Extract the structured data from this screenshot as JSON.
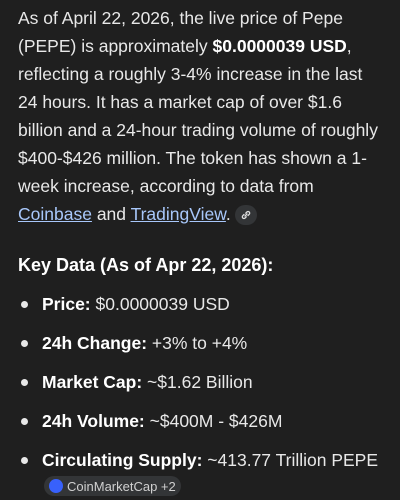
{
  "answer": {
    "paragraph": {
      "intro": "As of April 22, 2026, the live price of Pepe (PEPE) is approximately ",
      "price": "$0.0000039 USD",
      "body": ", reflecting a roughly 3-4% increase in the last 24 hours. It has a market cap of over $1.6 billion and a 24-hour trading volume of roughly $400-$426 million. The token has shown a 1-week increase, according to data from ",
      "link1": "Coinbase",
      "joiner": " and ",
      "link2": "TradingView",
      "end": "."
    },
    "heading": "Key Data (As of Apr 22, 2026):",
    "items": [
      {
        "label": "Price:",
        "value": " $0.0000039 USD"
      },
      {
        "label": "24h Change:",
        "value": " +3% to +4%"
      },
      {
        "label": "Market Cap:",
        "value": " ~$1.62 Billion"
      },
      {
        "label": "24h Volume:",
        "value": " ~$400M - $426M"
      },
      {
        "label": "Circulating Supply:",
        "value": " ~413.77 Trillion PEPE",
        "source": "CoinMarketCap +2"
      }
    ]
  }
}
